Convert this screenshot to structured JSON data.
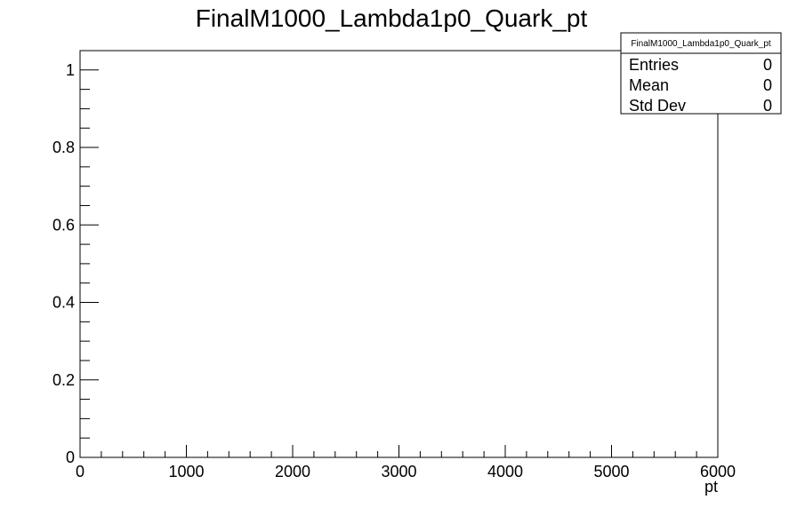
{
  "chart_data": {
    "type": "bar",
    "title": "FinalM1000_Lambda1p0_Quark_pt",
    "xlabel": "pt",
    "ylabel": "",
    "xlim": [
      0,
      6000
    ],
    "ylim": [
      0,
      1.05
    ],
    "x_ticks": [
      0,
      1000,
      2000,
      3000,
      4000,
      5000,
      6000
    ],
    "x_tick_labels": [
      "0",
      "1000",
      "2000",
      "3000",
      "4000",
      "5000",
      "6000"
    ],
    "y_ticks": [
      0,
      0.2,
      0.4,
      0.6,
      0.8,
      1
    ],
    "y_tick_labels": [
      "0",
      "0.2",
      "0.4",
      "0.6",
      "0.8",
      "1"
    ],
    "grid": false,
    "series": [
      {
        "values": []
      }
    ]
  },
  "stats_box": {
    "name": "FinalM1000_Lambda1p0_Quark_pt",
    "rows": [
      {
        "label": "Entries",
        "value": "0"
      },
      {
        "label": "Mean",
        "value": "0"
      },
      {
        "label": "Std Dev",
        "value": "0"
      }
    ]
  }
}
